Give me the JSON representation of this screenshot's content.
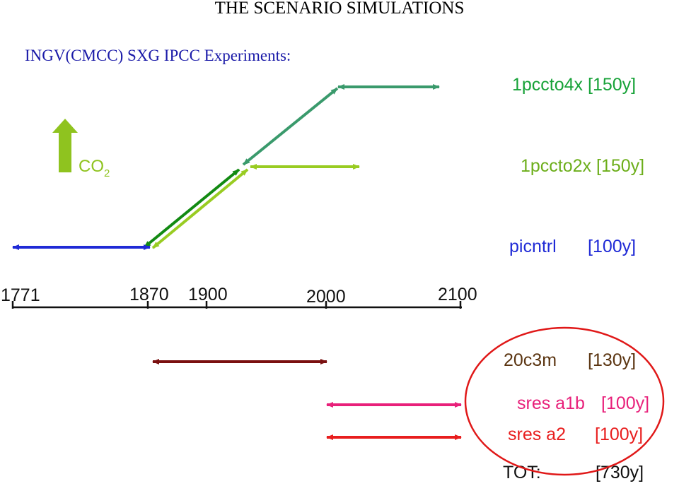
{
  "title": "THE SCENARIO SIMULATIONS",
  "subtitle": "INGV(CMCC) SXG IPCC Experiments:",
  "co2": {
    "main": "CO",
    "sub": "2",
    "arrow_color": "#8fc31f"
  },
  "timeline": {
    "ticks": [
      "1771",
      "1870",
      "1900",
      "2000",
      "2100"
    ]
  },
  "experiments": [
    {
      "id": "1pccto4x",
      "label": "1pccto4x",
      "duration": "[150y]",
      "color": "#3a9a6c"
    },
    {
      "id": "1pccto2x",
      "label": "1pccto2x",
      "duration": "[150y]",
      "color": "#99cc22"
    },
    {
      "id": "picntrl",
      "label": "picntrl",
      "duration": "[100y]",
      "color": "#1f2ad6"
    },
    {
      "id": "20c3m",
      "label": "20c3m",
      "duration": "[130y]",
      "color": "#7a1010"
    },
    {
      "id": "sres-a1b",
      "label": "sres a1b",
      "duration": "[100y]",
      "color": "#e8207a"
    },
    {
      "id": "sres-a2",
      "label": "sres a2",
      "duration": "[100y]",
      "color": "#e81e1e"
    }
  ],
  "total": {
    "label": "TOT:",
    "value": "[730y]"
  },
  "colors": {
    "title": "#000000",
    "subtitle": "#1a1aa8",
    "dark_green": "#128a12",
    "circle": "#e01818"
  }
}
